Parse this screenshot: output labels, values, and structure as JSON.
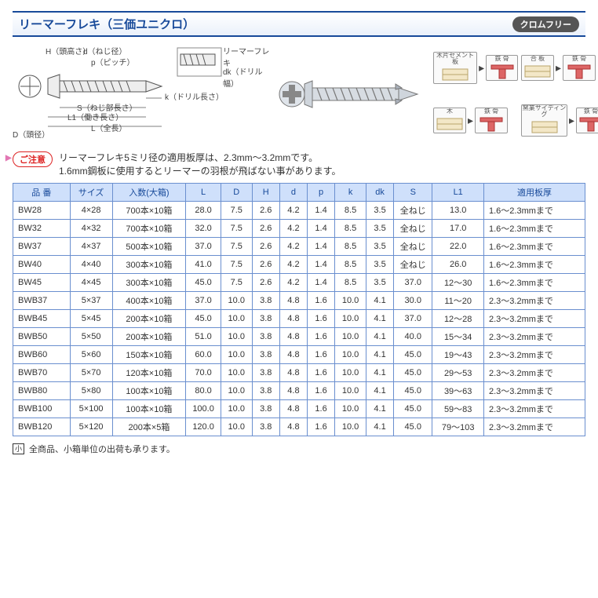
{
  "title": "リーマーフレキ（三価ユニクロ）",
  "badge_right": "クロムフリー",
  "diagram_labels": {
    "H": "H（頭高さ）",
    "d": "d（ねじ径）",
    "p": "p（ピッチ）",
    "dk_top": "リーマーフレキ",
    "dk": "dk（ドリル幅）",
    "D": "D（頭径）",
    "S": "S（ねじ部長さ）",
    "L1": "L1（働き長さ）",
    "L": "L（全長）",
    "k": "k（ドリル長さ）"
  },
  "material_pairs": [
    {
      "left": "木片セメント板",
      "right": "鉄 骨"
    },
    {
      "left": "合 板",
      "right": "鉄 骨"
    },
    {
      "left": "木",
      "right": "鉄 骨"
    },
    {
      "left": "窯業サイディング",
      "right": "鉄 骨"
    }
  ],
  "caution": {
    "label": "ご注意",
    "text1": "リーマーフレキ5ミリ径の適用板厚は、2.3mm～3.2mmです。",
    "text2": "1.6mm鋼板に使用するとリーマーの羽根が飛ばない事があります。"
  },
  "table": {
    "columns": [
      "品 番",
      "サイズ",
      "入数(大箱)",
      "L",
      "D",
      "H",
      "d",
      "p",
      "k",
      "dk",
      "S",
      "L1",
      "適用板厚"
    ],
    "col_widths": [
      "62px",
      "46px",
      "80px",
      "38px",
      "34px",
      "30px",
      "30px",
      "30px",
      "34px",
      "30px",
      "42px",
      "56px",
      "110px"
    ],
    "rows": [
      [
        "BW28",
        "4×28",
        "700本×10箱",
        "28.0",
        "7.5",
        "2.6",
        "4.2",
        "1.4",
        "8.5",
        "3.5",
        "全ねじ",
        "13.0",
        "1.6～2.3mmまで"
      ],
      [
        "BW32",
        "4×32",
        "700本×10箱",
        "32.0",
        "7.5",
        "2.6",
        "4.2",
        "1.4",
        "8.5",
        "3.5",
        "全ねじ",
        "17.0",
        "1.6～2.3mmまで"
      ],
      [
        "BW37",
        "4×37",
        "500本×10箱",
        "37.0",
        "7.5",
        "2.6",
        "4.2",
        "1.4",
        "8.5",
        "3.5",
        "全ねじ",
        "22.0",
        "1.6～2.3mmまで"
      ],
      [
        "BW40",
        "4×40",
        "300本×10箱",
        "41.0",
        "7.5",
        "2.6",
        "4.2",
        "1.4",
        "8.5",
        "3.5",
        "全ねじ",
        "26.0",
        "1.6～2.3mmまで"
      ],
      [
        "BW45",
        "4×45",
        "300本×10箱",
        "45.0",
        "7.5",
        "2.6",
        "4.2",
        "1.4",
        "8.5",
        "3.5",
        "37.0",
        "12～30",
        "1.6～2.3mmまで"
      ],
      [
        "BWB37",
        "5×37",
        "400本×10箱",
        "37.0",
        "10.0",
        "3.8",
        "4.8",
        "1.6",
        "10.0",
        "4.1",
        "30.0",
        "11～20",
        "2.3～3.2mmまで"
      ],
      [
        "BWB45",
        "5×45",
        "200本×10箱",
        "45.0",
        "10.0",
        "3.8",
        "4.8",
        "1.6",
        "10.0",
        "4.1",
        "37.0",
        "12～28",
        "2.3～3.2mmまで"
      ],
      [
        "BWB50",
        "5×50",
        "200本×10箱",
        "51.0",
        "10.0",
        "3.8",
        "4.8",
        "1.6",
        "10.0",
        "4.1",
        "40.0",
        "15～34",
        "2.3～3.2mmまで"
      ],
      [
        "BWB60",
        "5×60",
        "150本×10箱",
        "60.0",
        "10.0",
        "3.8",
        "4.8",
        "1.6",
        "10.0",
        "4.1",
        "45.0",
        "19～43",
        "2.3～3.2mmまで"
      ],
      [
        "BWB70",
        "5×70",
        "120本×10箱",
        "70.0",
        "10.0",
        "3.8",
        "4.8",
        "1.6",
        "10.0",
        "4.1",
        "45.0",
        "29～53",
        "2.3～3.2mmまで"
      ],
      [
        "BWB80",
        "5×80",
        "100本×10箱",
        "80.0",
        "10.0",
        "3.8",
        "4.8",
        "1.6",
        "10.0",
        "4.1",
        "45.0",
        "39～63",
        "2.3～3.2mmまで"
      ],
      [
        "BWB100",
        "5×100",
        "100本×10箱",
        "100.0",
        "10.0",
        "3.8",
        "4.8",
        "1.6",
        "10.0",
        "4.1",
        "45.0",
        "59～83",
        "2.3～3.2mmまで"
      ],
      [
        "BWB120",
        "5×120",
        "200本×5箱",
        "120.0",
        "10.0",
        "3.8",
        "4.8",
        "1.6",
        "10.0",
        "4.1",
        "45.0",
        "79～103",
        "2.3～3.2mmまで"
      ]
    ]
  },
  "footnote": {
    "mark": "小",
    "text": "全商品、小箱単位の出荷も承ります。"
  },
  "colors": {
    "brand_blue": "#184a9a",
    "header_bg": "#cfe0fb",
    "border": "#6a8fcf",
    "red": "#d22",
    "pink_arrow": "#e277b4",
    "badge_bg": "#555"
  }
}
